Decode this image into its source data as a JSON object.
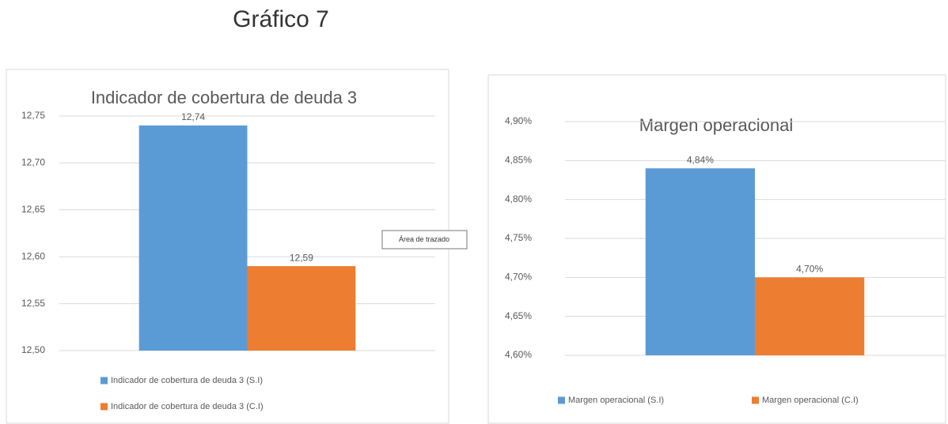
{
  "title": "Gráfico 7",
  "tooltip": "Área de trazado",
  "chart_data": [
    {
      "type": "bar",
      "title": "Indicador de cobertura de deuda 3",
      "categories": [
        null
      ],
      "series": [
        {
          "name": "Indicador de cobertura de deuda 3 (S.I)",
          "color": "#5b9bd5",
          "values": [
            12.74
          ],
          "value_labels": [
            "12,74"
          ]
        },
        {
          "name": "Indicador de cobertura de deuda 3 (C.I)",
          "color": "#ed7d31",
          "values": [
            12.59
          ],
          "value_labels": [
            "12,59"
          ]
        }
      ],
      "ylim": [
        12.5,
        12.75
      ],
      "yticks": [
        {
          "value": 12.5,
          "label": "12,50"
        },
        {
          "value": 12.55,
          "label": "12,55"
        },
        {
          "value": 12.6,
          "label": "12,60"
        },
        {
          "value": 12.65,
          "label": "12,65"
        },
        {
          "value": 12.7,
          "label": "12,70"
        },
        {
          "value": 12.75,
          "label": "12,75"
        }
      ],
      "grid": true,
      "legend": "bottom"
    },
    {
      "type": "bar",
      "title": "Margen operacional",
      "categories": [
        null
      ],
      "series": [
        {
          "name": "Margen operacional (S.I)",
          "color": "#5b9bd5",
          "values": [
            4.84
          ],
          "value_labels": [
            "4,84%"
          ]
        },
        {
          "name": "Margen operacional (C.I)",
          "color": "#ed7d31",
          "values": [
            4.7
          ],
          "value_labels": [
            "4,70%"
          ]
        }
      ],
      "ylim": [
        4.6,
        4.9
      ],
      "yticks": [
        {
          "value": 4.6,
          "label": "4,60%"
        },
        {
          "value": 4.65,
          "label": "4,65%"
        },
        {
          "value": 4.7,
          "label": "4,70%"
        },
        {
          "value": 4.75,
          "label": "4,75%"
        },
        {
          "value": 4.8,
          "label": "4,80%"
        },
        {
          "value": 4.85,
          "label": "4,85%"
        },
        {
          "value": 4.9,
          "label": "4,90%"
        }
      ],
      "grid": true,
      "legend": "bottom"
    }
  ]
}
